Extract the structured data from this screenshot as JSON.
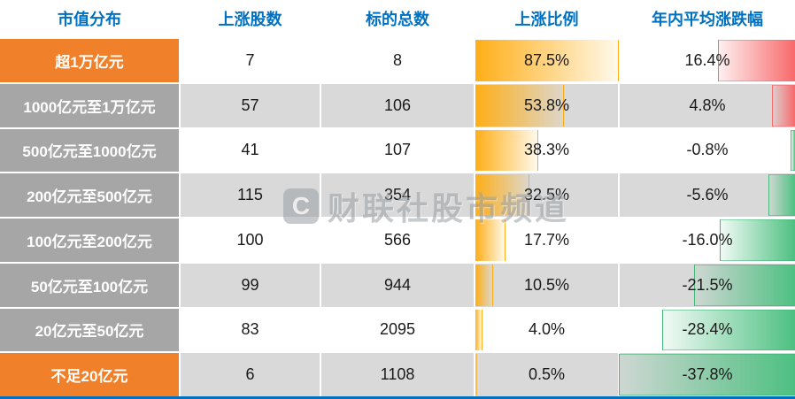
{
  "watermark": {
    "logo_letter": "C",
    "brand_text": "财联社股市频道"
  },
  "chart_data": {
    "type": "table",
    "columns": [
      "市值分布",
      "上涨股数",
      "标的总数",
      "上涨比例",
      "年内平均涨跌幅"
    ],
    "rows": [
      {
        "label": "超1万亿元",
        "label_style": "orange",
        "rising_text": "7",
        "total_text": "8",
        "ratio_text": "87.5%",
        "avg_text": "16.4%",
        "rising_count": 7,
        "total_count": 8,
        "rising_ratio_pct": 87.5,
        "avg_change_pct": 16.4
      },
      {
        "label": "1000亿元至1万亿元",
        "label_style": "gray",
        "rising_text": "57",
        "total_text": "106",
        "ratio_text": "53.8%",
        "avg_text": "4.8%",
        "rising_count": 57,
        "total_count": 106,
        "rising_ratio_pct": 53.8,
        "avg_change_pct": 4.8
      },
      {
        "label": "500亿元至1000亿元",
        "label_style": "gray",
        "rising_text": "41",
        "total_text": "107",
        "ratio_text": "38.3%",
        "avg_text": "-0.8%",
        "rising_count": 41,
        "total_count": 107,
        "rising_ratio_pct": 38.3,
        "avg_change_pct": -0.8
      },
      {
        "label": "200亿元至500亿元",
        "label_style": "gray",
        "rising_text": "115",
        "total_text": "354",
        "ratio_text": "32.5%",
        "avg_text": "-5.6%",
        "rising_count": 115,
        "total_count": 354,
        "rising_ratio_pct": 32.5,
        "avg_change_pct": -5.6
      },
      {
        "label": "100亿元至200亿元",
        "label_style": "gray",
        "rising_text": "100",
        "total_text": "566",
        "ratio_text": "17.7%",
        "avg_text": "-16.0%",
        "rising_count": 100,
        "total_count": 566,
        "rising_ratio_pct": 17.7,
        "avg_change_pct": -16.0
      },
      {
        "label": "50亿元至100亿元",
        "label_style": "gray",
        "rising_text": "99",
        "total_text": "944",
        "ratio_text": "10.5%",
        "avg_text": "-21.5%",
        "rising_count": 99,
        "total_count": 944,
        "rising_ratio_pct": 10.5,
        "avg_change_pct": -21.5
      },
      {
        "label": "20亿元至50亿元",
        "label_style": "gray",
        "rising_text": "83",
        "total_text": "2095",
        "ratio_text": "4.0%",
        "avg_text": "-28.4%",
        "rising_count": 83,
        "total_count": 2095,
        "rising_ratio_pct": 4.0,
        "avg_change_pct": -28.4
      },
      {
        "label": "不足20亿元",
        "label_style": "orange",
        "rising_text": "6",
        "total_text": "1108",
        "ratio_text": "0.5%",
        "avg_text": "-37.8%",
        "rising_count": 6,
        "total_count": 1108,
        "rising_ratio_pct": 0.5,
        "avg_change_pct": -37.8
      }
    ],
    "bar_scales": {
      "ratio_max": 87.5,
      "avg_abs_max": 37.8
    },
    "bar_colors": {
      "ratio": "#FFAE17",
      "positive": "#F8696B",
      "negative": "#4DC081"
    },
    "layout": {
      "grid": false,
      "zebra_rows": true
    }
  },
  "colors": {
    "header_text": "#0070C0",
    "label_orange": "#F0812A",
    "label_gray": "#A6A6A6",
    "zebra": "#D9D9D9",
    "bottom_line": "#0070C0"
  }
}
